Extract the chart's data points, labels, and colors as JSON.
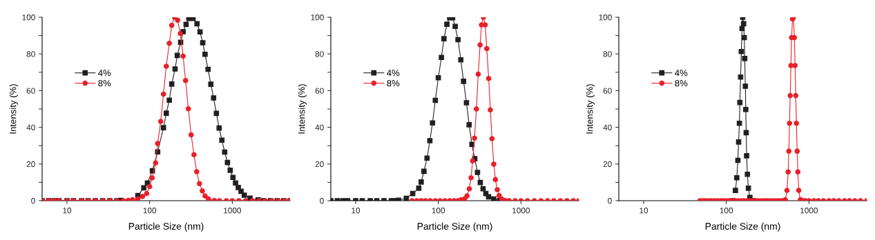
{
  "chart_data": [
    {
      "type": "line",
      "xlabel": "Particle Size (nm)",
      "ylabel": "Intensity (%)",
      "log": "x",
      "xlim": [
        5,
        5000
      ],
      "xticks": [
        10,
        100,
        1000
      ],
      "ylim": [
        0,
        100
      ],
      "yticks": [
        0,
        {
          "value": 10,
          "label": null
        },
        20,
        {
          "value": 30,
          "label": null
        },
        40,
        {
          "value": 50,
          "label": null
        },
        60,
        {
          "value": 70,
          "label": null
        },
        80,
        {
          "value": 90,
          "label": null
        },
        100
      ],
      "grid": false,
      "legend": "top left",
      "line_style": "solid",
      "series": [
        {
          "name": "4%",
          "color": "#231f20",
          "marker": "square",
          "x": [
            5,
            6,
            7,
            8,
            10,
            12,
            15,
            18,
            22,
            27,
            33,
            40,
            45,
            49,
            56,
            72,
            85,
            94,
            108,
            125,
            147,
            159,
            173,
            185,
            203,
            216,
            237,
            254,
            276,
            298,
            335,
            374,
            407,
            439,
            468,
            509,
            550,
            594,
            642,
            693,
            748,
            809,
            874,
            944,
            1019,
            1094,
            1182,
            1277,
            1397,
            1640,
            2055,
            2400,
            2900,
            3500,
            4200,
            5000
          ],
          "values": [
            0,
            0,
            0,
            0,
            0,
            0,
            0,
            0,
            0,
            0,
            0,
            0,
            0.2,
            null,
            null,
            2.8,
            7,
            9.7,
            16.3,
            26.6,
            39.8,
            47.7,
            54.8,
            63.6,
            71.8,
            79.2,
            86.3,
            92.1,
            96.1,
            99.4,
            99.4,
            96.5,
            92,
            86.1,
            79.8,
            71.6,
            63.5,
            56,
            47.6,
            39.6,
            33,
            26.5,
            20.8,
            16.6,
            12.7,
            9.7,
            7.2,
            5.1,
            3,
            1.4,
            0.4,
            0,
            0,
            0,
            0,
            0
          ]
        },
        {
          "name": "8%",
          "color": "#e8202a",
          "marker": "circle",
          "x": [
            5,
            6,
            7,
            8,
            10,
            12,
            15,
            18,
            22,
            27,
            33,
            40,
            48,
            55,
            62,
            72,
            82,
            92,
            100,
            107,
            118,
            125,
            136,
            147,
            159,
            173,
            185,
            200,
            218,
            235,
            254,
            272,
            294,
            318,
            344,
            371,
            401,
            434,
            468,
            514,
            606,
            700,
            850,
            1000,
            1200,
            1450,
            1750,
            2100,
            2500,
            3000,
            3600,
            4300,
            5000
          ],
          "values": [
            0,
            0,
            0,
            0,
            0,
            0,
            0,
            0,
            0,
            0,
            0,
            0,
            0,
            0.2,
            0.5,
            1,
            2.3,
            3.9,
            7.7,
            12.4,
            20.6,
            31.2,
            43.2,
            58.1,
            73.3,
            85.8,
            95.6,
            100,
            98.4,
            91.1,
            78.8,
            65.5,
            50.1,
            35.9,
            25.1,
            15.8,
            9.3,
            5.3,
            2.6,
            1,
            0.1,
            0,
            0,
            0,
            0,
            0,
            0,
            0,
            0,
            0,
            0,
            0,
            0
          ]
        }
      ]
    },
    {
      "type": "line",
      "xlabel": "Particle Size (nm)",
      "ylabel": "Intensity (%)",
      "log": "x",
      "xlim": [
        5,
        5000
      ],
      "xticks": [
        10,
        100,
        1000
      ],
      "ylim": [
        0,
        100
      ],
      "yticks": [
        0,
        {
          "value": 10,
          "label": null
        },
        20,
        {
          "value": 30,
          "label": null
        },
        40,
        {
          "value": 50,
          "label": null
        },
        60,
        {
          "value": 70,
          "label": null
        },
        80,
        {
          "value": 90,
          "label": null
        },
        100
      ],
      "grid": false,
      "legend": "top left",
      "line_style": "solid",
      "series": [
        {
          "name": "4%",
          "color": "#231f20",
          "marker": "square",
          "x": [
            5,
            6,
            7,
            8,
            10,
            12,
            15,
            18,
            22,
            27,
            30,
            33,
            41,
            49,
            58,
            62,
            67,
            73,
            79,
            85,
            92,
            100,
            109,
            117,
            127,
            137,
            149,
            160,
            173,
            187,
            202,
            219,
            236,
            255,
            276,
            298,
            322,
            348,
            376,
            406,
            468,
            550,
            600
          ],
          "values": [
            0,
            0,
            0,
            0,
            0,
            0,
            0,
            0,
            0,
            0,
            0,
            0.3,
            1.3,
            3.9,
            6.8,
            10.2,
            16,
            23.2,
            32.7,
            42.4,
            54.7,
            67,
            78.1,
            88.3,
            96.2,
            99.7,
            99.7,
            95,
            87.8,
            76.8,
            65.1,
            53.4,
            41.4,
            30.7,
            22.9,
            15.4,
            9.9,
            6.5,
            3.9,
            2.1,
            0.9,
            0.1,
            0
          ]
        },
        {
          "name": "8%",
          "color": "#e8202a",
          "marker": "circle",
          "x": [
            48,
            55,
            62,
            70,
            80,
            92,
            105,
            120,
            137,
            155,
            172,
            189,
            208,
            222,
            237,
            249,
            260,
            274,
            289,
            304,
            320,
            333,
            351,
            369,
            386,
            407,
            426,
            446,
            469,
            491,
            517,
            544,
            584,
            644,
            720,
            850,
            1000,
            1200,
            1450,
            1750,
            2100,
            2500,
            3000,
            3600,
            4300,
            5000
          ],
          "values": [
            0,
            0,
            0,
            0,
            0,
            0,
            0,
            0,
            0,
            0,
            0,
            0.5,
            1,
            2.6,
            6.5,
            12.5,
            21.7,
            34.1,
            50,
            69,
            84.9,
            95.8,
            100,
            95.8,
            82.9,
            66.6,
            49.5,
            33.8,
            19.9,
            11.5,
            6,
            2.8,
            0.9,
            0.1,
            0,
            0,
            0,
            0,
            0,
            0,
            0,
            0,
            0,
            0,
            0,
            0
          ]
        }
      ]
    },
    {
      "type": "line",
      "xlabel": "Particle Size (nm)",
      "ylabel": "Intensity (%)",
      "log": "x",
      "xlim": [
        5,
        5000
      ],
      "xticks": [
        10,
        100,
        1000
      ],
      "ylim": [
        0,
        100
      ],
      "yticks": [
        0,
        {
          "value": 10,
          "label": null
        },
        20,
        {
          "value": 30,
          "label": null
        },
        40,
        {
          "value": 50,
          "label": null
        },
        60,
        {
          "value": 70,
          "label": null
        },
        80,
        {
          "value": 90,
          "label": null
        },
        100
      ],
      "grid": false,
      "legend": "top left",
      "line_style": "solid",
      "series": [
        {
          "name": "4%",
          "color": "#231f20",
          "marker": "square",
          "x": [
            120,
            124,
            129,
            134,
            138,
            141,
            144,
            146,
            149,
            152,
            155,
            158,
            162,
            165,
            167,
            170,
            172,
            174,
            176,
            180,
            185,
            193,
            203,
            210
          ],
          "values": [
            0,
            null,
            5.6,
            12.5,
            22,
            32,
            42.2,
            53.5,
            67.4,
            81.3,
            93.9,
            100,
            96.5,
            88.9,
            77.5,
            62.4,
            49.7,
            37.1,
            24.5,
            14.4,
            6.8,
            1.8,
            null,
            0
          ]
        },
        {
          "name": "8%",
          "color": "#e8202a",
          "marker": "circle",
          "x": [
            48,
            52,
            56,
            61,
            66,
            72,
            78,
            85,
            92,
            100,
            108,
            117,
            127,
            138,
            150,
            163,
            177,
            192,
            208,
            226,
            245,
            266,
            289,
            313,
            340,
            369,
            400,
            434,
            471,
            500,
            518,
            542,
            560,
            571,
            582,
            593,
            605,
            617,
            633,
            649,
            666,
            679,
            692,
            706,
            720,
            734,
            753,
            788,
            840,
            900,
            1000,
            1150,
            1300,
            1500,
            1750,
            2000,
            2300,
            2700,
            3100,
            3600,
            4200,
            5000
          ],
          "values": [
            0,
            0,
            0,
            0,
            0,
            0,
            0,
            0,
            0,
            0,
            0,
            0,
            0,
            0,
            0,
            0,
            0,
            0,
            0,
            0,
            0,
            0,
            0,
            0,
            0,
            0,
            0,
            0,
            0,
            0,
            0.5,
            5.6,
            15.7,
            27,
            42.2,
            57.3,
            73.7,
            88.9,
            99,
            100,
            88.9,
            73.7,
            57.3,
            42.2,
            27,
            15.7,
            5.6,
            0.5,
            0,
            0,
            0,
            0,
            0,
            0,
            0,
            0,
            0,
            0,
            0,
            0,
            0,
            0
          ]
        }
      ]
    }
  ]
}
